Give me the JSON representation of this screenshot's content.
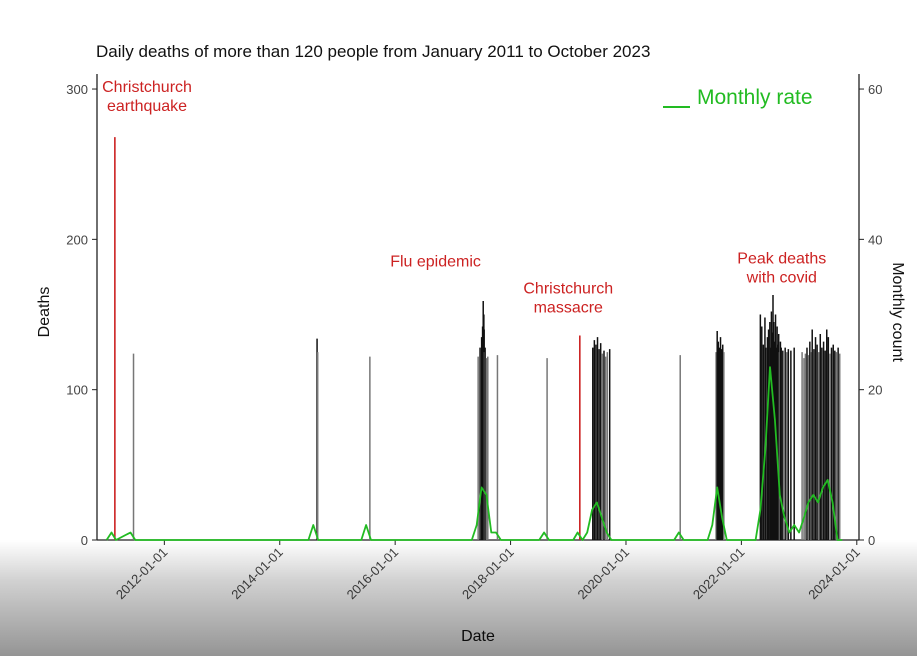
{
  "chart_data": {
    "type": "bar",
    "title": "Daily deaths of more than 120 people from January 2011 to October 2023",
    "xlabel": "Date",
    "ylabel": "Deaths",
    "y2label": "Monthly count",
    "xlim": [
      "2010-11-01",
      "2024-01-15"
    ],
    "ylim": [
      0,
      310
    ],
    "y2lim": [
      0,
      62
    ],
    "grid": false,
    "x_ticks": [
      "2012-01-01",
      "2014-01-01",
      "2016-01-01",
      "2018-01-01",
      "2020-01-01",
      "2022-01-01",
      "2024-01-01"
    ],
    "y_ticks": [
      0,
      100,
      200,
      300
    ],
    "y2_ticks": [
      0,
      20,
      40,
      60
    ],
    "legend": {
      "label": "Monthly rate",
      "position": "top-right",
      "color": "#22bb22"
    },
    "colors": {
      "bar": "#111111",
      "bar_light": "#777777",
      "event": "#cc2222",
      "rate": "#22bb22",
      "axis": "#222222"
    },
    "events": [
      {
        "date": "2011-02-22",
        "value": 268,
        "label": "Christchurch\nearthquake",
        "label_pos": [
          2011.7,
          298
        ]
      },
      {
        "date": "2019-03-15",
        "value": 136,
        "label": "Christchurch\nmassacre",
        "label_pos": [
          2019.0,
          164
        ]
      },
      {
        "date": "2017-07-15",
        "value": 0,
        "label": "Flu epidemic",
        "label_pos": [
          2016.7,
          182
        ],
        "label_only": true
      },
      {
        "date": "2022-08-01",
        "value": 0,
        "label": "Peak deaths\nwith covid",
        "label_pos": [
          2022.7,
          184
        ],
        "label_only": true
      }
    ],
    "daily_deaths": [
      [
        "2011-06-20",
        124
      ],
      [
        "2014-08-25",
        134
      ],
      [
        "2014-08-29",
        125
      ],
      [
        "2015-07-25",
        122
      ],
      [
        "2017-06-10",
        122
      ],
      [
        "2017-06-22",
        128
      ],
      [
        "2017-07-02",
        135
      ],
      [
        "2017-07-06",
        130
      ],
      [
        "2017-07-08",
        142
      ],
      [
        "2017-07-10",
        138
      ],
      [
        "2017-07-12",
        159
      ],
      [
        "2017-07-14",
        132
      ],
      [
        "2017-07-16",
        150
      ],
      [
        "2017-07-18",
        140
      ],
      [
        "2017-07-20",
        125
      ],
      [
        "2017-07-24",
        128
      ],
      [
        "2017-08-02",
        121
      ],
      [
        "2017-08-10",
        122
      ],
      [
        "2017-10-10",
        123
      ],
      [
        "2018-08-20",
        121
      ],
      [
        "2019-06-05",
        128
      ],
      [
        "2019-06-15",
        133
      ],
      [
        "2019-06-25",
        130
      ],
      [
        "2019-07-05",
        135
      ],
      [
        "2019-07-15",
        127
      ],
      [
        "2019-07-25",
        131
      ],
      [
        "2019-08-05",
        124
      ],
      [
        "2019-08-15",
        126
      ],
      [
        "2019-08-25",
        122
      ],
      [
        "2019-09-05",
        125
      ],
      [
        "2019-09-20",
        127
      ],
      [
        "2020-12-10",
        123
      ],
      [
        "2021-07-25",
        125
      ],
      [
        "2021-08-01",
        139
      ],
      [
        "2021-08-08",
        132
      ],
      [
        "2021-08-15",
        128
      ],
      [
        "2021-08-22",
        135
      ],
      [
        "2021-08-29",
        127
      ],
      [
        "2021-09-05",
        130
      ],
      [
        "2021-09-12",
        125
      ],
      [
        "2022-05-01",
        150
      ],
      [
        "2022-05-10",
        142
      ],
      [
        "2022-05-20",
        130
      ],
      [
        "2022-05-30",
        148
      ],
      [
        "2022-06-05",
        128
      ],
      [
        "2022-06-15",
        135
      ],
      [
        "2022-06-22",
        140
      ],
      [
        "2022-06-30",
        145
      ],
      [
        "2022-07-05",
        128
      ],
      [
        "2022-07-10",
        152
      ],
      [
        "2022-07-15",
        138
      ],
      [
        "2022-07-20",
        163
      ],
      [
        "2022-07-25",
        145
      ],
      [
        "2022-07-30",
        132
      ],
      [
        "2022-08-05",
        150
      ],
      [
        "2022-08-10",
        128
      ],
      [
        "2022-08-15",
        142
      ],
      [
        "2022-08-20",
        130
      ],
      [
        "2022-08-25",
        137
      ],
      [
        "2022-08-30",
        125
      ],
      [
        "2022-09-05",
        132
      ],
      [
        "2022-09-10",
        128
      ],
      [
        "2022-09-20",
        126
      ],
      [
        "2022-10-05",
        128
      ],
      [
        "2022-10-15",
        125
      ],
      [
        "2022-10-25",
        127
      ],
      [
        "2022-11-10",
        126
      ],
      [
        "2022-12-01",
        128
      ],
      [
        "2023-01-20",
        125
      ],
      [
        "2023-02-01",
        121
      ],
      [
        "2023-02-10",
        124
      ],
      [
        "2023-02-20",
        128
      ],
      [
        "2023-03-01",
        123
      ],
      [
        "2023-03-10",
        132
      ],
      [
        "2023-03-18",
        125
      ],
      [
        "2023-03-25",
        140
      ],
      [
        "2023-04-05",
        127
      ],
      [
        "2023-04-15",
        135
      ],
      [
        "2023-04-25",
        130
      ],
      [
        "2023-05-05",
        125
      ],
      [
        "2023-05-15",
        137
      ],
      [
        "2023-05-25",
        128
      ],
      [
        "2023-06-05",
        132
      ],
      [
        "2023-06-15",
        126
      ],
      [
        "2023-06-25",
        140
      ],
      [
        "2023-07-05",
        135
      ],
      [
        "2023-07-15",
        124
      ],
      [
        "2023-07-25",
        128
      ],
      [
        "2023-08-05",
        130
      ],
      [
        "2023-08-15",
        126
      ],
      [
        "2023-08-25",
        125
      ],
      [
        "2023-09-05",
        128
      ],
      [
        "2023-09-15",
        124
      ]
    ],
    "monthly_rate": [
      [
        "2011-01-01",
        0
      ],
      [
        "2011-02-01",
        1
      ],
      [
        "2011-03-01",
        0
      ],
      [
        "2011-06-01",
        1
      ],
      [
        "2011-07-01",
        0
      ],
      [
        "2014-07-01",
        0
      ],
      [
        "2014-08-01",
        2
      ],
      [
        "2014-09-01",
        0
      ],
      [
        "2015-06-01",
        0
      ],
      [
        "2015-07-01",
        2
      ],
      [
        "2015-08-01",
        0
      ],
      [
        "2017-05-01",
        0
      ],
      [
        "2017-06-01",
        2
      ],
      [
        "2017-07-01",
        7
      ],
      [
        "2017-08-01",
        6
      ],
      [
        "2017-09-01",
        1
      ],
      [
        "2017-10-01",
        1
      ],
      [
        "2017-11-01",
        0
      ],
      [
        "2018-07-01",
        0
      ],
      [
        "2018-08-01",
        1
      ],
      [
        "2018-09-01",
        0
      ],
      [
        "2019-02-01",
        0
      ],
      [
        "2019-03-01",
        1
      ],
      [
        "2019-04-01",
        0
      ],
      [
        "2019-05-01",
        1
      ],
      [
        "2019-06-01",
        4
      ],
      [
        "2019-07-01",
        5
      ],
      [
        "2019-08-01",
        3
      ],
      [
        "2019-09-01",
        1
      ],
      [
        "2019-10-01",
        0
      ],
      [
        "2020-11-01",
        0
      ],
      [
        "2020-12-01",
        1
      ],
      [
        "2021-01-01",
        0
      ],
      [
        "2021-06-01",
        0
      ],
      [
        "2021-07-01",
        2
      ],
      [
        "2021-08-01",
        7
      ],
      [
        "2021-09-01",
        3
      ],
      [
        "2021-10-01",
        0
      ],
      [
        "2022-04-01",
        0
      ],
      [
        "2022-05-01",
        4
      ],
      [
        "2022-06-01",
        12
      ],
      [
        "2022-07-01",
        23
      ],
      [
        "2022-08-01",
        16
      ],
      [
        "2022-09-01",
        6
      ],
      [
        "2022-10-01",
        3
      ],
      [
        "2022-11-01",
        1
      ],
      [
        "2022-12-01",
        2
      ],
      [
        "2023-01-01",
        1
      ],
      [
        "2023-02-01",
        3
      ],
      [
        "2023-03-01",
        5
      ],
      [
        "2023-04-01",
        6
      ],
      [
        "2023-05-01",
        5
      ],
      [
        "2023-06-01",
        7
      ],
      [
        "2023-07-01",
        8
      ],
      [
        "2023-08-01",
        5
      ],
      [
        "2023-09-01",
        0
      ],
      [
        "2023-10-01",
        0
      ]
    ]
  }
}
